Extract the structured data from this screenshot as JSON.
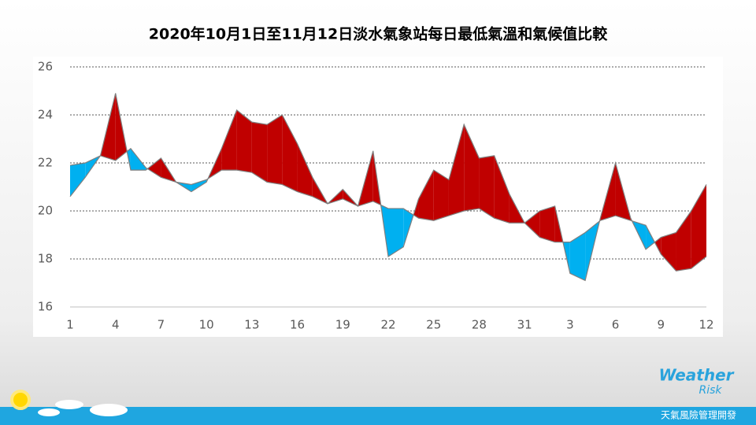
{
  "chart_data": {
    "type": "difference_area",
    "title": "2020年10月1日至11月12日淡水氣象站每日最低氣溫和氣候值比較",
    "categories": [
      "1",
      null,
      null,
      "4",
      null,
      null,
      "7",
      null,
      null,
      "10",
      null,
      null,
      "13",
      null,
      null,
      "16",
      null,
      null,
      "19",
      null,
      null,
      "22",
      null,
      null,
      "25",
      null,
      null,
      "28",
      null,
      null,
      "31",
      null,
      null,
      "3",
      null,
      null,
      "6",
      null,
      null,
      "9",
      null,
      null,
      "12"
    ],
    "series": [
      {
        "values": [
          20.6,
          21.4,
          22.3,
          24.9,
          21.7,
          21.7,
          22.2,
          21.2,
          20.8,
          21.2,
          22.6,
          24.2,
          23.7,
          23.6,
          24.0,
          22.8,
          21.4,
          20.3,
          20.9,
          20.2,
          22.5,
          18.1,
          18.5,
          20.5,
          21.7,
          21.3,
          23.6,
          22.2,
          22.3,
          20.7,
          19.5,
          20.0,
          20.2,
          17.4,
          17.1,
          19.7,
          22.0,
          19.7,
          18.4,
          18.9,
          19.1,
          20.0,
          21.1
        ]
      },
      {
        "values": [
          21.9,
          22.0,
          22.3,
          22.1,
          22.6,
          21.8,
          21.4,
          21.2,
          21.1,
          21.3,
          21.7,
          21.7,
          21.6,
          21.2,
          21.1,
          20.8,
          20.6,
          20.3,
          20.5,
          20.2,
          20.4,
          20.1,
          20.1,
          19.7,
          19.6,
          19.8,
          20.0,
          20.1,
          19.7,
          19.5,
          19.5,
          18.9,
          18.7,
          18.7,
          19.1,
          19.6,
          19.8,
          19.6,
          19.4,
          18.2,
          17.5,
          17.6,
          18.1
        ]
      }
    ],
    "above_color": "#c00000",
    "below_color": "#00b0f0",
    "line_color": "#7f7f7f",
    "ylim": [
      16,
      26
    ],
    "yticks": [
      16,
      18,
      20,
      22,
      24,
      26
    ],
    "grid": true
  },
  "logo": {
    "line1": "Weather",
    "line2": "Risk"
  },
  "footer": "天氣風險管理開發"
}
